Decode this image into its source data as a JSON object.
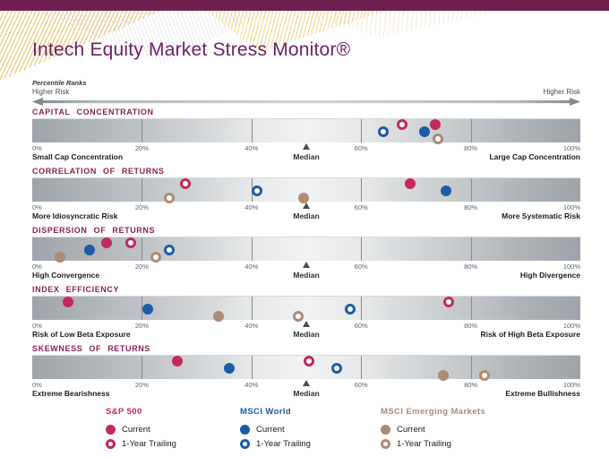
{
  "page": {
    "title": "Intech Equity Market Stress Monitor®"
  },
  "header": {
    "percentile_ranks_label": "Percentile Ranks",
    "higher_risk_left": "Higher Risk",
    "higher_risk_right": "Higher Risk"
  },
  "colors": {
    "topbar": "#6E2051",
    "title": "#6E2167",
    "category_label": "#8D2056",
    "sp500": "#C4295C",
    "msci_world": "#1D5CA4",
    "msci_em": "#AE8B74",
    "bar_dark": "#9EA4A9",
    "bar_light": "#F1F2F3",
    "median_marker": "#4A4A4A",
    "deco_gold": "#E2B23C"
  },
  "legend": {
    "current_label": "Current",
    "trailing_label": "1-Year Trailing",
    "series": [
      {
        "id": "sp500",
        "name": "S&P 500",
        "color": "#C4295C"
      },
      {
        "id": "msci_world",
        "name": "MSCI World",
        "color": "#1D5CA4"
      },
      {
        "id": "msci_em",
        "name": "MSCI Emerging Markets",
        "color": "#AE8B74"
      }
    ]
  },
  "chart_data": {
    "type": "scatter",
    "unit": "percentile_rank_percent",
    "axis": {
      "ticks": [
        "0%",
        "20%",
        "40%",
        "60%",
        "80%",
        "100%"
      ],
      "tick_values": [
        0,
        20,
        40,
        60,
        80,
        100
      ],
      "median_label": "Median",
      "median_value": 50
    },
    "rows": [
      {
        "category": "CAPITAL CONCENTRATION",
        "left_label": "Small Cap Concentration",
        "right_label": "Large Cap Concentration",
        "points": [
          {
            "series": "msci_world",
            "variant": "trailing",
            "value": 64
          },
          {
            "series": "sp500",
            "variant": "trailing",
            "value": 67.5
          },
          {
            "series": "msci_world",
            "variant": "current",
            "value": 71.5
          },
          {
            "series": "sp500",
            "variant": "current",
            "value": 73.5
          },
          {
            "series": "msci_em",
            "variant": "trailing",
            "value": 74
          }
        ]
      },
      {
        "category": "CORRELATION OF RETURNS",
        "left_label": "More Idiosyncratic Risk",
        "right_label": "More Systematic Risk",
        "points": [
          {
            "series": "msci_em",
            "variant": "trailing",
            "value": 25
          },
          {
            "series": "sp500",
            "variant": "trailing",
            "value": 28
          },
          {
            "series": "msci_world",
            "variant": "trailing",
            "value": 41
          },
          {
            "series": "msci_em",
            "variant": "current",
            "value": 49.5
          },
          {
            "series": "sp500",
            "variant": "current",
            "value": 69
          },
          {
            "series": "msci_world",
            "variant": "current",
            "value": 75.5
          }
        ]
      },
      {
        "category": "DISPERSION OF RETURNS",
        "left_label": "High Convergence",
        "right_label": "High Divergence",
        "points": [
          {
            "series": "msci_em",
            "variant": "current",
            "value": 5
          },
          {
            "series": "msci_world",
            "variant": "current",
            "value": 10.5
          },
          {
            "series": "sp500",
            "variant": "current",
            "value": 13.5
          },
          {
            "series": "sp500",
            "variant": "trailing",
            "value": 18
          },
          {
            "series": "msci_em",
            "variant": "trailing",
            "value": 22.5
          },
          {
            "series": "msci_world",
            "variant": "trailing",
            "value": 25
          }
        ]
      },
      {
        "category": "INDEX EFFICIENCY",
        "left_label": "Risk of Low Beta Exposure",
        "right_label": "Risk of High Beta Exposure",
        "points": [
          {
            "series": "sp500",
            "variant": "current",
            "value": 6.5
          },
          {
            "series": "msci_world",
            "variant": "current",
            "value": 21
          },
          {
            "series": "msci_em",
            "variant": "current",
            "value": 34
          },
          {
            "series": "msci_em",
            "variant": "trailing",
            "value": 48.5
          },
          {
            "series": "msci_world",
            "variant": "trailing",
            "value": 58
          },
          {
            "series": "sp500",
            "variant": "trailing",
            "value": 76
          }
        ]
      },
      {
        "category": "SKEWNESS OF RETURNS",
        "left_label": "Extreme Bearishness",
        "right_label": "Extreme Bullishness",
        "points": [
          {
            "series": "sp500",
            "variant": "current",
            "value": 26.5
          },
          {
            "series": "msci_world",
            "variant": "current",
            "value": 36
          },
          {
            "series": "sp500",
            "variant": "trailing",
            "value": 50.5
          },
          {
            "series": "msci_world",
            "variant": "trailing",
            "value": 55.5
          },
          {
            "series": "msci_em",
            "variant": "current",
            "value": 75
          },
          {
            "series": "msci_em",
            "variant": "trailing",
            "value": 82.5
          }
        ]
      }
    ]
  }
}
